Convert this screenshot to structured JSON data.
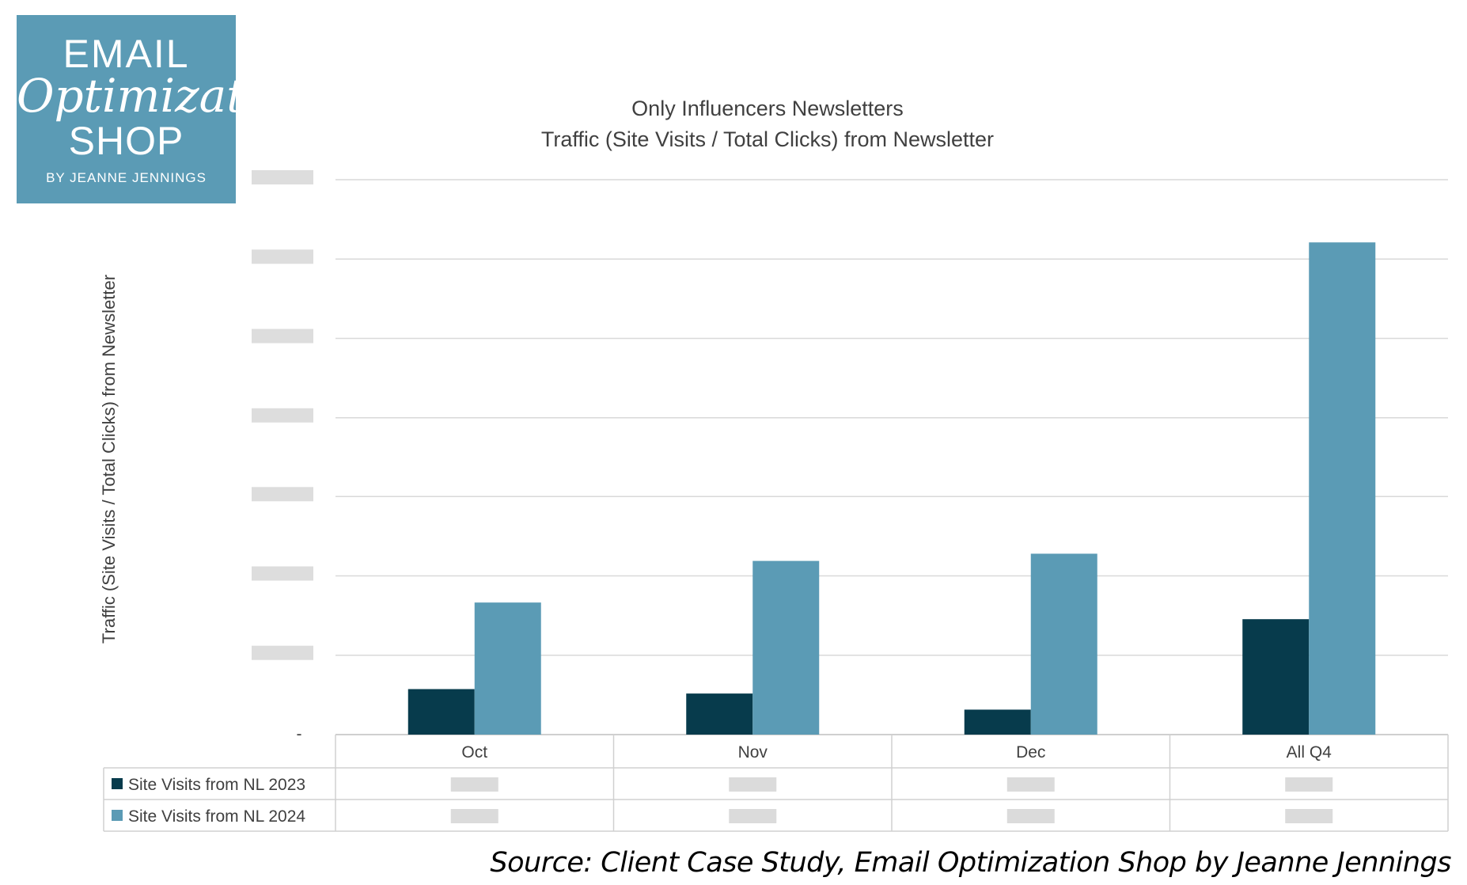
{
  "logo": {
    "line1": "EMAIL",
    "line2": "Optimization",
    "line3": "SHOP",
    "line4": "BY JEANNE JENNINGS",
    "bg_color": "#5b9bb5"
  },
  "chart_data": {
    "type": "bar",
    "title": [
      "Only Influencers Newsletters",
      "Traffic (Site Visits / Total Clicks) from Newsletter"
    ],
    "ylabel": "Traffic (Site Visits / Total Clicks) from Newsletter",
    "xlabel": "",
    "categories": [
      "Oct",
      "Nov",
      "Dec",
      "All Q4"
    ],
    "series": [
      {
        "name": "Site Visits from NL 2023",
        "color": "#073b4c",
        "values": [
          0.82,
          0.74,
          0.45,
          2.08
        ]
      },
      {
        "name": "Site Visits from NL 2024",
        "color": "#5b9bb5",
        "values": [
          2.38,
          3.13,
          3.26,
          8.87
        ]
      }
    ],
    "ylim": [
      0,
      10
    ],
    "yticks": [
      0,
      1.43,
      2.86,
      4.29,
      5.71,
      7.14,
      8.57,
      10
    ],
    "zero_tick_label": "-",
    "y_tick_labels_obscured": true,
    "table_values_obscured": true,
    "grid": true,
    "legend": "data-table"
  },
  "source": "Source: Client Case Study, Email Optimization Shop by Jeanne Jennings"
}
